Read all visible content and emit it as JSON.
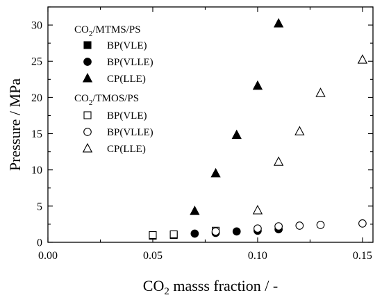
{
  "chart_data": {
    "type": "scatter",
    "title": "",
    "xlabel": {
      "main": "CO",
      "sub": "2",
      "rest": " masss fraction / -"
    },
    "ylabel": "Pressure / MPa",
    "xlim": [
      0.0,
      0.155
    ],
    "ylim": [
      0,
      32.5
    ],
    "x_ticks": [
      0.0,
      0.05,
      0.1,
      0.15
    ],
    "x_tick_labels": [
      "0.00",
      "0.05",
      "0.10",
      "0.15"
    ],
    "y_ticks": [
      0,
      5,
      10,
      15,
      20,
      25,
      30
    ],
    "y_tick_labels": [
      "0",
      "5",
      "10",
      "15",
      "20",
      "25",
      "30"
    ],
    "grid": false,
    "legend_placement": "top-left",
    "legend_groups": [
      {
        "title": {
          "main": "CO",
          "sub": "2",
          "rest": "/MTMS/PS"
        },
        "entries": [
          "BP(VLE)",
          "BP(VLLE)",
          "CP(LLE)"
        ]
      },
      {
        "title": {
          "main": "CO",
          "sub": "2",
          "rest": "/TMOS/PS"
        },
        "entries": [
          "BP(VLE)",
          "BP(VLLE)",
          "CP(LLE)"
        ]
      }
    ],
    "series": [
      {
        "name": "CO2/MTMS/PS BP(VLE)",
        "marker": "square",
        "filled": true,
        "x": [
          0.05,
          0.06
        ],
        "y": [
          0.9,
          1.0
        ]
      },
      {
        "name": "CO2/MTMS/PS BP(VLLE)",
        "marker": "circle",
        "filled": true,
        "x": [
          0.07,
          0.08,
          0.09,
          0.1,
          0.11
        ],
        "y": [
          1.2,
          1.3,
          1.5,
          1.6,
          1.8
        ]
      },
      {
        "name": "CO2/MTMS/PS CP(LLE)",
        "marker": "triangle",
        "filled": true,
        "x": [
          0.07,
          0.08,
          0.09,
          0.1,
          0.11
        ],
        "y": [
          4.3,
          9.5,
          14.8,
          21.6,
          30.2
        ]
      },
      {
        "name": "CO2/TMOS/PS BP(VLE)",
        "marker": "square",
        "filled": false,
        "x": [
          0.05,
          0.06,
          0.08
        ],
        "y": [
          1.0,
          1.1,
          1.6
        ]
      },
      {
        "name": "CO2/TMOS/PS BP(VLLE)",
        "marker": "circle",
        "filled": false,
        "x": [
          0.08,
          0.1,
          0.11,
          0.12,
          0.13,
          0.15
        ],
        "y": [
          1.5,
          1.9,
          2.2,
          2.3,
          2.4,
          2.6
        ]
      },
      {
        "name": "CO2/TMOS/PS CP(LLE)",
        "marker": "triangle",
        "filled": false,
        "x": [
          0.1,
          0.11,
          0.12,
          0.13,
          0.15
        ],
        "y": [
          4.4,
          11.1,
          15.3,
          20.6,
          25.2
        ]
      }
    ]
  }
}
